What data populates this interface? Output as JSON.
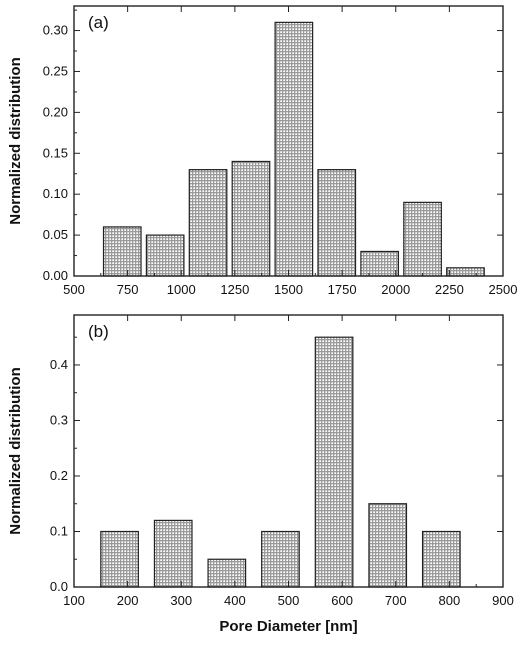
{
  "chart_data": [
    {
      "type": "bar",
      "panel_label": "(a)",
      "ylabel": "Normalized distribution",
      "xlabel": "",
      "xlim": [
        500,
        2500
      ],
      "ylim": [
        0,
        0.33
      ],
      "x_ticks": [
        500,
        750,
        1000,
        1250,
        1500,
        1750,
        2000,
        2250,
        2500
      ],
      "x_tick_labels": [
        "500",
        "750",
        "1000",
        "1250",
        "1500",
        "1750",
        "2000",
        "2250",
        "2500"
      ],
      "y_ticks": [
        0,
        0.05,
        0.1,
        0.15,
        0.2,
        0.25,
        0.3
      ],
      "y_tick_labels": [
        "0.00",
        "0.05",
        "0.10",
        "0.15",
        "0.20",
        "0.25",
        "0.30"
      ],
      "bar_width": 175,
      "x": [
        725,
        925,
        1125,
        1325,
        1525,
        1725,
        1925,
        2125,
        2325
      ],
      "values": [
        0.06,
        0.05,
        0.13,
        0.14,
        0.31,
        0.13,
        0.03,
        0.09,
        0.01
      ],
      "grid": false,
      "legend": "none"
    },
    {
      "type": "bar",
      "panel_label": "(b)",
      "ylabel": "Normalized distribution",
      "xlabel": "Pore Diameter [nm]",
      "xlim": [
        100,
        900
      ],
      "ylim": [
        0,
        0.49
      ],
      "x_ticks": [
        100,
        200,
        300,
        400,
        500,
        600,
        700,
        800,
        900
      ],
      "x_tick_labels": [
        "100",
        "200",
        "300",
        "400",
        "500",
        "600",
        "700",
        "800",
        "900"
      ],
      "y_ticks": [
        0,
        0.1,
        0.2,
        0.3,
        0.4
      ],
      "y_tick_labels": [
        "0.0",
        "0.1",
        "0.2",
        "0.3",
        "0.4"
      ],
      "bar_width": 70,
      "x": [
        185,
        285,
        385,
        485,
        585,
        685,
        785
      ],
      "values": [
        0.1,
        0.12,
        0.05,
        0.1,
        0.45,
        0.15,
        0.1
      ],
      "grid": false,
      "legend": "none"
    }
  ]
}
